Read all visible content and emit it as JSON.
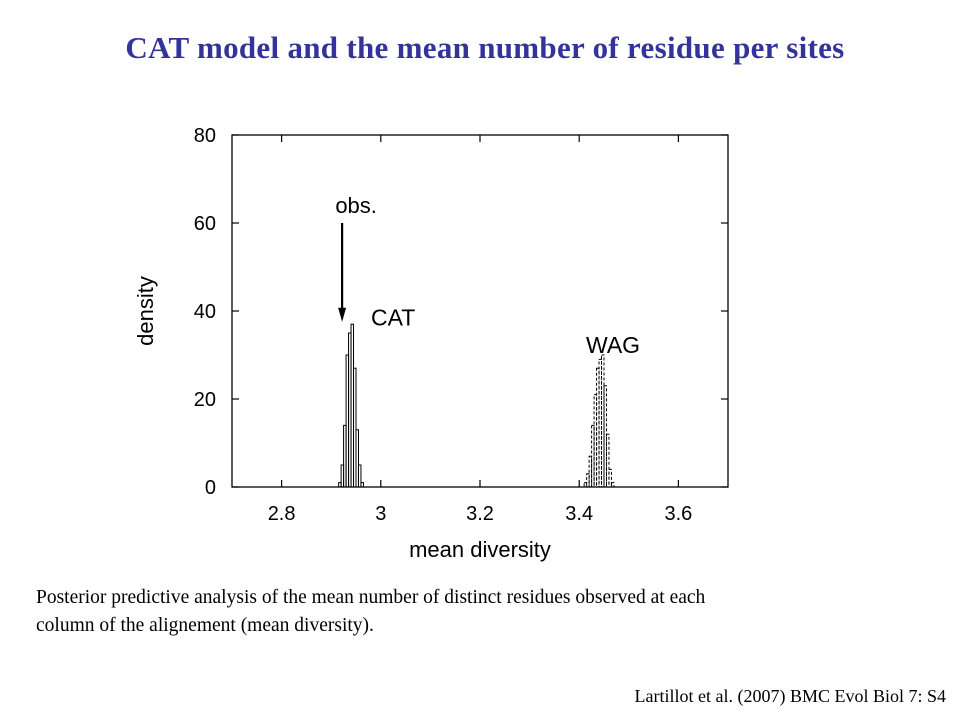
{
  "slide": {
    "title": "CAT model and the mean number of residue per sites",
    "caption_line1": "Posterior predictive analysis of the mean number of distinct residues observed at each",
    "caption_line2": "column of the alignement (mean diversity).",
    "citation": "Lartillot et al. (2007) BMC Evol Biol 7: S4"
  },
  "colors": {
    "title": "#333399",
    "axis": "#000000",
    "bars": "#000000"
  },
  "chart_data": {
    "type": "bar",
    "xlabel": "mean diversity",
    "ylabel": "density",
    "xlim": [
      2.7,
      3.7
    ],
    "ylim": [
      0,
      80
    ],
    "xticks": [
      2.8,
      3.0,
      3.2,
      3.4,
      3.6
    ],
    "xtick_labels": [
      "2.8",
      "3",
      "3.2",
      "3.4",
      "3.6"
    ],
    "yticks": [
      0,
      20,
      40,
      60,
      80
    ],
    "ytick_labels": [
      "0",
      "20",
      "40",
      "60",
      "80"
    ],
    "grid": false,
    "bin_width": 0.005,
    "series": [
      {
        "name": "CAT",
        "line_style": "solid",
        "bins": [
          2.915,
          2.92,
          2.925,
          2.93,
          2.935,
          2.94,
          2.945,
          2.95,
          2.955,
          2.96
        ],
        "values": [
          1,
          5,
          14,
          30,
          35,
          37,
          27,
          13,
          5,
          1
        ]
      },
      {
        "name": "WAG",
        "line_style": "dashed",
        "bins": [
          3.41,
          3.415,
          3.42,
          3.425,
          3.43,
          3.435,
          3.44,
          3.445,
          3.45,
          3.455,
          3.46,
          3.465
        ],
        "values": [
          1,
          3,
          7,
          14,
          21,
          27,
          29,
          30,
          23,
          12,
          4,
          1
        ]
      }
    ],
    "annotations": [
      {
        "text": "obs.",
        "points_to_x": 2.922,
        "points_to_y": 38
      },
      {
        "text": "CAT",
        "near_x": 2.95,
        "near_y": 39
      },
      {
        "text": "WAG",
        "near_x": 3.44,
        "near_y": 32
      }
    ]
  }
}
